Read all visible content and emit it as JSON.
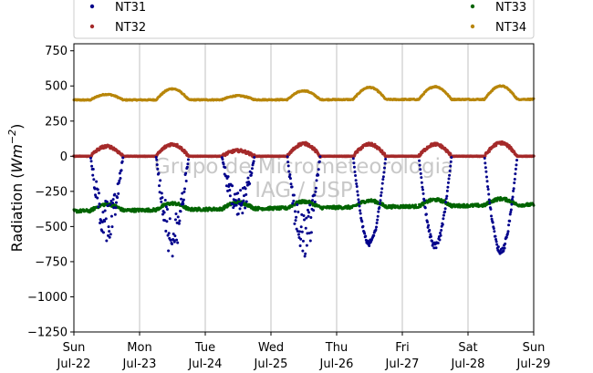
{
  "chart_data": {
    "type": "scatter",
    "ylabel": "Radiation (Wm⁻²)",
    "ylabel_parts": {
      "main": "Radiation (",
      "unit": "Wm",
      "sup": "−2",
      "close": ")"
    },
    "ylim": [
      -1250,
      800
    ],
    "yticks": [
      750,
      500,
      250,
      0,
      -250,
      -500,
      -750,
      -1000,
      -1250
    ],
    "ytick_labels": [
      "750",
      "500",
      "250",
      "0",
      "−250",
      "−500",
      "−750",
      "−1000",
      "−1250"
    ],
    "xlim": [
      "2018-07-22",
      "2018-07-29"
    ],
    "xticks": [
      {
        "day": "Sun",
        "date": "Jul-22"
      },
      {
        "day": "Mon",
        "date": "Jul-23"
      },
      {
        "day": "Tue",
        "date": "Jul-24"
      },
      {
        "day": "Wed",
        "date": "Jul-25"
      },
      {
        "day": "Thu",
        "date": "Jul-26"
      },
      {
        "day": "Fri",
        "date": "Jul-27"
      },
      {
        "day": "Sat",
        "date": "Jul-28"
      },
      {
        "day": "Sun",
        "date": "Jul-29"
      }
    ],
    "grid": "vertical",
    "legend": {
      "placement": "top",
      "columns": 2
    },
    "watermark": {
      "line1": "Grupo de Micrometeorologia",
      "line2": "IAG / USP"
    },
    "series": [
      {
        "name": "NT31",
        "color": "#00008b",
        "kind": "outgoing-negative",
        "daily_min": [
          -580,
          -700,
          -450,
          -720,
          -640,
          -660,
          -700
        ]
      },
      {
        "name": "NT32",
        "color": "#a52a2a",
        "kind": "small-positive",
        "daily_max": [
          70,
          85,
          40,
          90,
          85,
          85,
          95
        ]
      },
      {
        "name": "NT33",
        "color": "#006400",
        "kind": "night-negative",
        "baseline_start": -390,
        "baseline_end": -345,
        "night_dip": -60
      },
      {
        "name": "NT34",
        "color": "#b8860b",
        "kind": "daily-wave",
        "baseline_start": 400,
        "baseline_end": 405,
        "daily_max": [
          440,
          480,
          430,
          465,
          490,
          495,
          500
        ]
      }
    ]
  }
}
